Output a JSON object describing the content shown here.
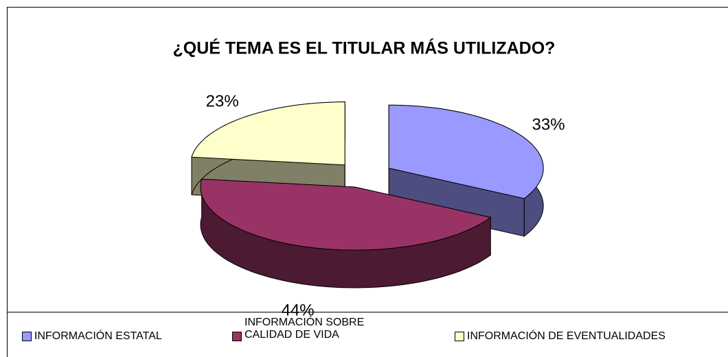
{
  "chart_data": {
    "type": "pie3d",
    "title": "¿QUÉ TEMA ES EL TITULAR MÁS UTILIZADO?",
    "categories": [
      "INFORMACIÓN ESTATAL",
      "INFORMACIÓN SOBRE CALIDAD DE VIDA",
      "INFORMACIÓN DE EVENTUALIDADES"
    ],
    "values": [
      33,
      44,
      23
    ],
    "value_labels": [
      "33%",
      "44%",
      "23%"
    ],
    "colors": [
      "#9999ff",
      "#993366",
      "#ffffcc"
    ],
    "legend": "bottom"
  }
}
